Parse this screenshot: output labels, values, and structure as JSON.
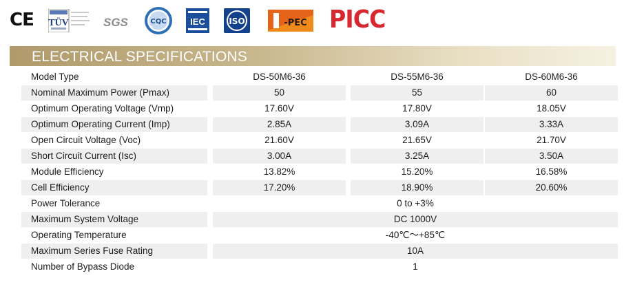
{
  "logos": {
    "ce": "CE",
    "tuv": "TÜV",
    "sgs": "SGS",
    "cqc": "CQC",
    "iec": "IEC",
    "iso": "ISO",
    "jpec": "J-PEC",
    "picc": "PICC"
  },
  "title": "ELECTRICAL SPECIFICATIONS",
  "table": {
    "header": {
      "label": "Model Type",
      "models": [
        "DS-50M6-36",
        "DS-55M6-36",
        "DS-60M6-36"
      ]
    },
    "rows": [
      {
        "label": "Nominal Maximum Power (Pmax)",
        "values": [
          "50",
          "55",
          "60"
        ]
      },
      {
        "label": "Optimum Operating Voltage (Vmp)",
        "values": [
          "17.60V",
          "17.80V",
          "18.05V"
        ]
      },
      {
        "label": "Optimum Operating Current (Imp)",
        "values": [
          "2.85A",
          "3.09A",
          "3.33A"
        ]
      },
      {
        "label": "Open Circuit Voltage (Voc)",
        "values": [
          "21.60V",
          "21.65V",
          "21.70V"
        ]
      },
      {
        "label": "Short Circuit Current (Isc)",
        "values": [
          "3.00A",
          "3.25A",
          "3.50A"
        ]
      },
      {
        "label": "Module Efficiency",
        "values": [
          "13.82%",
          "15.20%",
          "16.58%"
        ]
      },
      {
        "label": "Cell Efficiency",
        "values": [
          "17.20%",
          "18.90%",
          "20.60%"
        ]
      }
    ],
    "shared_rows": [
      {
        "label": "Power Tolerance",
        "value": "0 to +3%"
      },
      {
        "label": "Maximum System Voltage",
        "value": "DC 1000V"
      },
      {
        "label": "Operating Temperature",
        "value": "-40℃～+85℃"
      },
      {
        "label": "Maximum Series Fuse Rating",
        "value": "10A"
      },
      {
        "label": "Number of Bypass Diode",
        "value": "1"
      }
    ]
  }
}
